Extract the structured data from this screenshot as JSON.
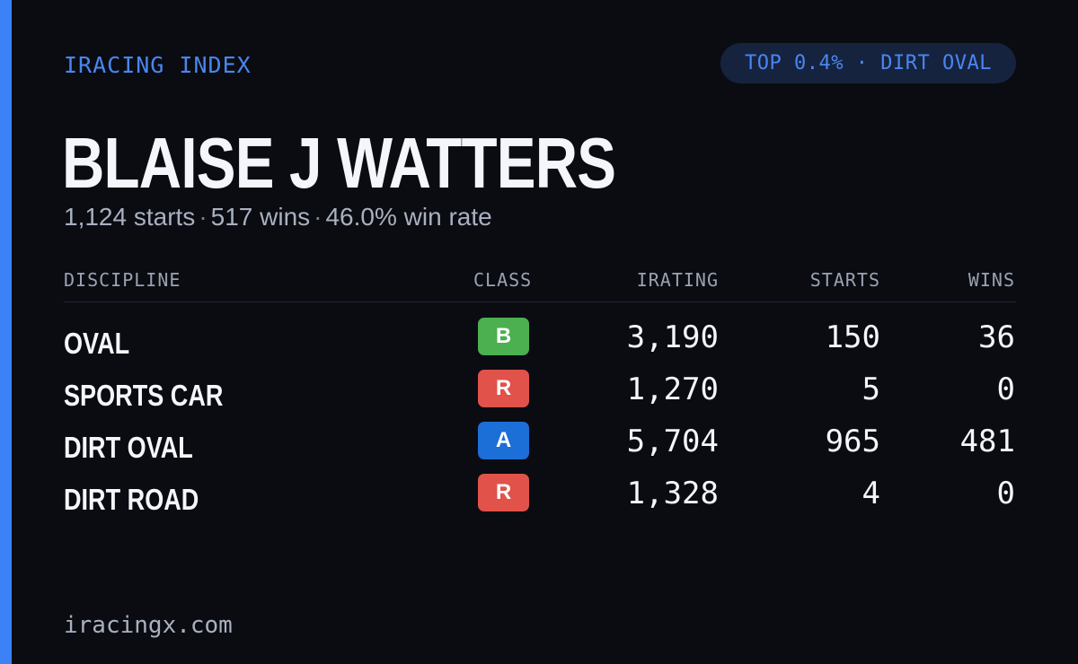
{
  "brand": "IRACING INDEX",
  "rank_pill": "TOP 0.4% · DIRT OVAL",
  "driver": {
    "name": "BLAISE J WATTERS",
    "starts": "1,124 starts",
    "wins": "517 wins",
    "win_rate": "46.0% win rate",
    "separator": "·"
  },
  "table": {
    "headers": {
      "discipline": "DISCIPLINE",
      "class": "CLASS",
      "irating": "IRATING",
      "starts": "STARTS",
      "wins": "WINS"
    },
    "rows": [
      {
        "discipline": "OVAL",
        "class": "B",
        "class_color": "#4caf50",
        "irating": "3,190",
        "starts": "150",
        "wins": "36"
      },
      {
        "discipline": "SPORTS CAR",
        "class": "R",
        "class_color": "#e0524a",
        "irating": "1,270",
        "starts": "5",
        "wins": "0"
      },
      {
        "discipline": "DIRT OVAL",
        "class": "A",
        "class_color": "#1b6fd6",
        "irating": "5,704",
        "starts": "965",
        "wins": "481"
      },
      {
        "discipline": "DIRT ROAD",
        "class": "R",
        "class_color": "#e0524a",
        "irating": "1,328",
        "starts": "4",
        "wins": "0"
      }
    ]
  },
  "footer": "iracingx.com",
  "colors": {
    "background": "#0a0c12",
    "accent": "#3b82f6"
  }
}
